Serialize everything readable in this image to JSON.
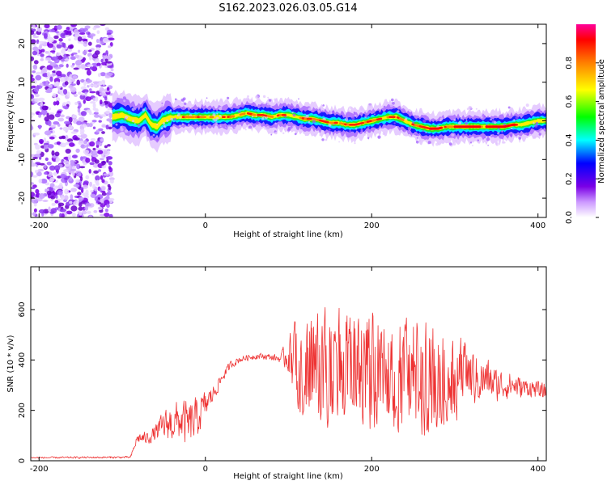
{
  "chart_data": [
    {
      "type": "heatmap",
      "title": "S162.2023.026.03.05.G14",
      "xlabel": "Height of straight line (km)",
      "ylabel": "Frequency (Hz)",
      "xlim": [
        -210,
        410
      ],
      "ylim": [
        -25,
        25
      ],
      "x_ticks": [
        -200,
        0,
        200,
        400
      ],
      "y_ticks": [
        -20,
        -10,
        0,
        10,
        20
      ],
      "colorbar": {
        "label": "Normalized spectral amplitude",
        "range": [
          0,
          1
        ],
        "ticks": [
          "0.0",
          "0.2",
          "0.4",
          "0.6",
          "0.8"
        ],
        "colors": [
          "#ffffff",
          "#cc99ff",
          "#7a00e6",
          "#0000ff",
          "#00ffff",
          "#00ff00",
          "#ffff00",
          "#ff8000",
          "#ff0000",
          "#ff0099"
        ]
      },
      "noise_region_x": [
        -210,
        -112
      ],
      "ridge": {
        "x": [
          -112,
          -100,
          -90,
          -80,
          -72,
          -65,
          -58,
          -52,
          -46,
          -40,
          -30,
          -20,
          -10,
          0,
          10,
          20,
          30,
          40,
          50,
          60,
          70,
          80,
          90,
          100,
          110,
          120,
          130,
          140,
          150,
          160,
          170,
          180,
          190,
          200,
          210,
          220,
          230,
          240,
          250,
          260,
          270,
          280,
          290,
          300,
          310,
          320,
          330,
          340,
          350,
          360,
          370,
          380,
          390,
          400,
          410
        ],
        "y": [
          1.0,
          1.5,
          0.5,
          0.0,
          1.5,
          -1.0,
          -1.5,
          0.0,
          0.5,
          1.0,
          1.0,
          1.0,
          1.0,
          1.0,
          1.0,
          1.0,
          1.0,
          1.5,
          2.0,
          1.5,
          1.5,
          1.0,
          1.5,
          1.5,
          1.0,
          0.5,
          0.5,
          0.0,
          -0.5,
          -0.5,
          -1.0,
          -1.0,
          -0.5,
          0.0,
          0.5,
          1.0,
          1.0,
          0.0,
          -1.0,
          -1.5,
          -2.0,
          -2.0,
          -1.5,
          -1.5,
          -1.5,
          -1.5,
          -1.5,
          -1.5,
          -1.5,
          -1.5,
          -1.0,
          -1.0,
          -0.5,
          0.0,
          0.0
        ]
      }
    },
    {
      "type": "line",
      "title": "",
      "xlabel": "Height of straight line (km)",
      "ylabel": "SNR (10 * v/v)",
      "xlim": [
        -210,
        410
      ],
      "ylim": [
        0,
        770
      ],
      "x_ticks": [
        -200,
        0,
        200,
        400
      ],
      "y_ticks": [
        0,
        200,
        400,
        600
      ],
      "line_color": "#ee3333",
      "envelope": {
        "x": [
          -210,
          -90,
          -82,
          -70,
          -60,
          -50,
          -40,
          -30,
          -20,
          -10,
          0,
          10,
          20,
          30,
          40,
          50,
          60,
          70,
          80,
          90,
          100,
          110,
          120,
          130,
          140,
          150,
          160,
          170,
          180,
          190,
          200,
          210,
          220,
          230,
          240,
          250,
          260,
          270,
          280,
          290,
          300,
          310,
          320,
          330,
          340,
          350,
          360,
          370,
          380,
          390,
          400,
          410
        ],
        "mean": [
          12,
          14,
          90,
          90,
          110,
          140,
          150,
          160,
          140,
          170,
          220,
          270,
          330,
          380,
          400,
          410,
          415,
          415,
          410,
          405,
          420,
          390,
          370,
          380,
          370,
          380,
          360,
          370,
          360,
          360,
          360,
          340,
          350,
          340,
          340,
          350,
          350,
          340,
          350,
          330,
          330,
          330,
          330,
          320,
          320,
          300,
          300,
          300,
          290,
          290,
          280,
          270
        ],
        "spread": [
          4,
          5,
          25,
          30,
          40,
          70,
          90,
          100,
          110,
          100,
          70,
          40,
          25,
          20,
          15,
          15,
          15,
          15,
          15,
          20,
          90,
          200,
          240,
          250,
          260,
          260,
          270,
          270,
          270,
          270,
          270,
          260,
          260,
          260,
          270,
          270,
          280,
          270,
          260,
          230,
          200,
          170,
          140,
          110,
          100,
          80,
          70,
          60,
          50,
          45,
          40,
          40
        ]
      }
    }
  ]
}
